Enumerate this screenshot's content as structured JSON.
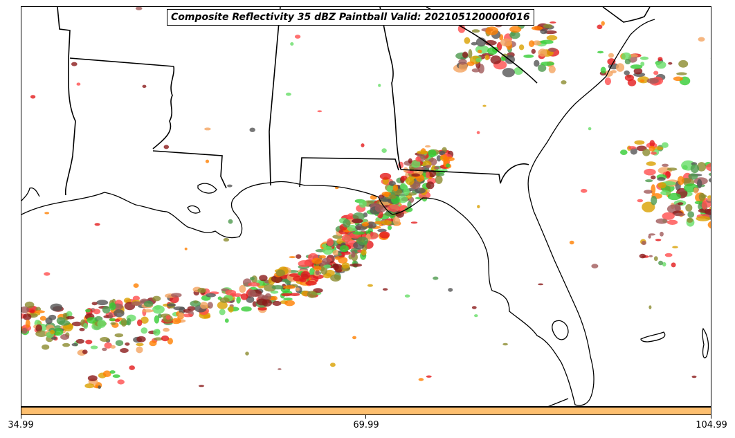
{
  "title": "Composite Reflectivity 35 dBZ Paintball Valid: 202105120000f016",
  "colorbar": {
    "color": "#fdbf6f",
    "ticks": [
      "34.99",
      "69.99",
      "104.99"
    ]
  },
  "member_colors": [
    "#ff4d4d",
    "#ff7f00",
    "#33cc33",
    "#8b1a1a",
    "#8b8b2e",
    "#4d9a4d",
    "#d9a000",
    "#555555",
    "#f4a460",
    "#e31a1c",
    "#a05a5a",
    "#66dd66"
  ],
  "map": {
    "region": "Southeastern United States and Gulf of Mexico",
    "line_color": "#000000"
  }
}
